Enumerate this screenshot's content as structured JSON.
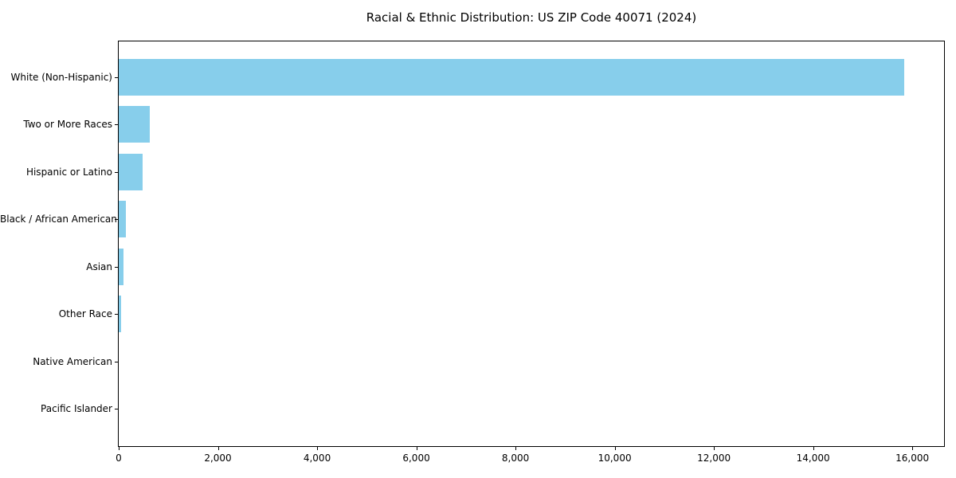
{
  "figure": {
    "title": "Racial & Ethnic Distribution: US ZIP Code 40071 (2024)"
  },
  "chart_data": {
    "type": "bar",
    "orientation": "horizontal",
    "title": "Racial & Ethnic Distribution: US ZIP Code 40071 (2024)",
    "categories": [
      "White (Non-Hispanic)",
      "Two or More Races",
      "Hispanic or Latino",
      "Black / African American",
      "Asian",
      "Other Race",
      "Native American",
      "Pacific Islander"
    ],
    "values": [
      15830,
      630,
      480,
      145,
      90,
      55,
      0,
      0
    ],
    "xlabel": "",
    "ylabel": "",
    "xlim": [
      0,
      16640
    ],
    "xticks": {
      "values": [
        0,
        2000,
        4000,
        6000,
        8000,
        10000,
        12000,
        14000,
        16000
      ],
      "labels": [
        "0",
        "2,000",
        "4,000",
        "6,000",
        "8,000",
        "10,000",
        "12,000",
        "14,000",
        "16,000"
      ]
    },
    "bar_color": "#87CEEB",
    "text_color": "#000000",
    "axis_color": "#000000",
    "background": "#FFFFFF",
    "grid": false,
    "legend": null
  }
}
